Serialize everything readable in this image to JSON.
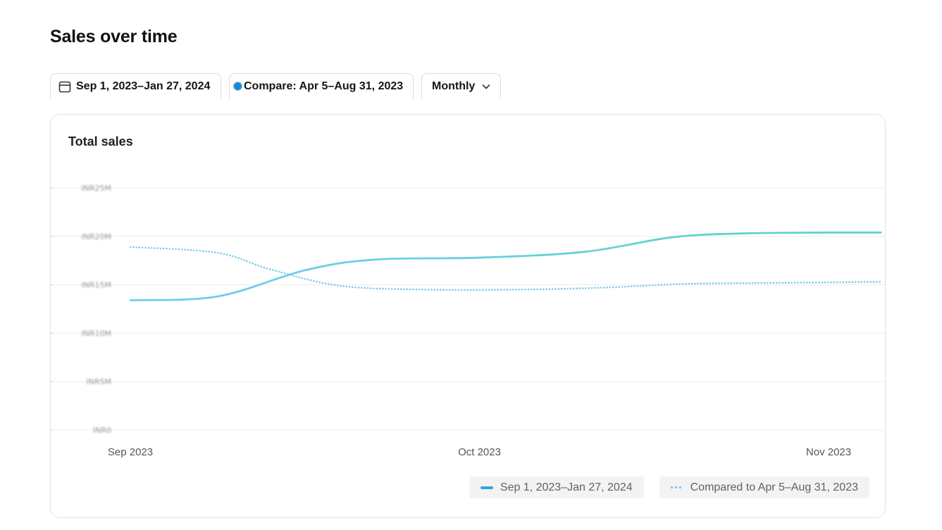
{
  "page": {
    "title": "Sales over time"
  },
  "toolbar": {
    "date_range": "Sep 1, 2023–Jan 27, 2024",
    "compare": "Compare: Apr 5–Aug 31, 2023",
    "period": "Monthly"
  },
  "card": {
    "title": "Total sales"
  },
  "colors": {
    "primary_line_start": "#6fcdf0",
    "primary_line_end": "#5fd4c4",
    "compare_line": "#7fcbe8",
    "gridline": "#ececec"
  },
  "chart_data": {
    "type": "line",
    "title": "Total sales",
    "y_tick_labels": [
      "INR25M",
      "INR20M",
      "INR15M",
      "INR10M",
      "INR5M",
      "INR0"
    ],
    "y_ticks": [
      25,
      20,
      15,
      10,
      5,
      0
    ],
    "ylim": [
      0,
      25
    ],
    "x_tick_labels": [
      "Sep 2023",
      "Oct 2023",
      "Nov 2023"
    ],
    "xlim": [
      0,
      2.15
    ],
    "grid": true,
    "legend_position": "bottom-right",
    "series": [
      {
        "name": "Sep 1, 2023–Jan 27, 2024",
        "style": "solid",
        "x": [
          0,
          0.25,
          0.5,
          0.7,
          1.0,
          1.3,
          1.55,
          1.75,
          2.0,
          2.15
        ],
        "values": [
          13.4,
          13.8,
          16.5,
          17.6,
          17.8,
          18.4,
          19.9,
          20.3,
          20.4,
          20.4
        ]
      },
      {
        "name": "Compared to Apr 5–Aug 31, 2023",
        "style": "dotted",
        "x": [
          0,
          0.25,
          0.4,
          0.6,
          0.85,
          1.1,
          1.35,
          1.6,
          1.85,
          2.15
        ],
        "values": [
          18.9,
          18.3,
          16.6,
          14.9,
          14.5,
          14.5,
          14.7,
          15.1,
          15.2,
          15.3
        ]
      }
    ]
  }
}
